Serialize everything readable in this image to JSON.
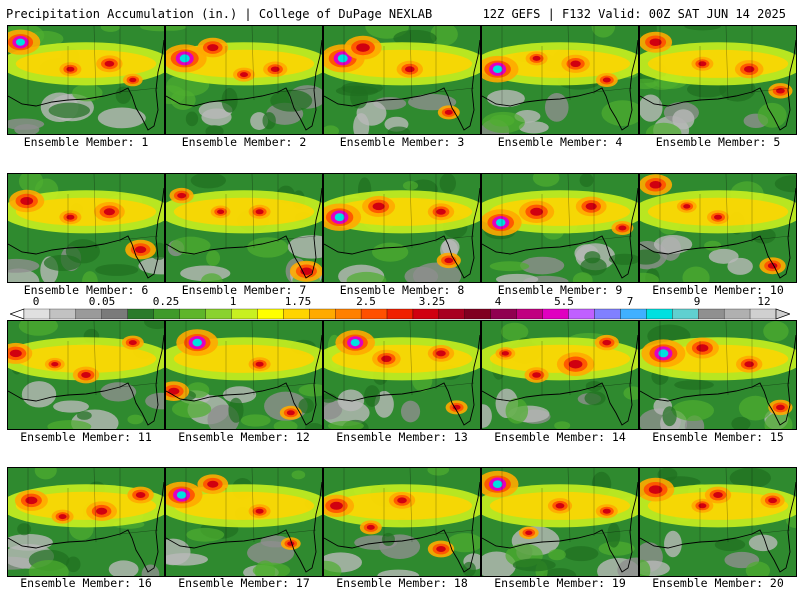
{
  "header": {
    "title": "Precipitation Accumulation (in.) | College of DuPage NEXLAB",
    "run_info": "12Z GEFS | F132 Valid: 00Z SAT JUN 14 2025"
  },
  "colorbar": {
    "labels": [
      "0",
      "0.05",
      "0.25",
      "1",
      "1.75",
      "2.5",
      "3.25",
      "4",
      "5.5",
      "7",
      "9",
      "12"
    ],
    "colors": [
      "#e0e0e0",
      "#c2c2c2",
      "#9a9a9a",
      "#7a7a7a",
      "#2a7a2a",
      "#3f9a2a",
      "#5fb52a",
      "#8ad22e",
      "#c8f020",
      "#ffff00",
      "#ffd400",
      "#ffaa00",
      "#ff8000",
      "#ff5000",
      "#f02000",
      "#d00010",
      "#a80020",
      "#800020",
      "#900050",
      "#c00080",
      "#e000c0",
      "#c060ff",
      "#8080ff",
      "#40b0ff",
      "#00e0e0",
      "#60d0d0",
      "#909090",
      "#b0b0b0",
      "#d0d0d0"
    ]
  },
  "members": [
    {
      "label": "Ensemble Member: 1",
      "blobs": [
        [
          0.08,
          0.15,
          0.9
        ],
        [
          0.65,
          0.35,
          0.6
        ],
        [
          0.4,
          0.4,
          0.5
        ],
        [
          0.8,
          0.5,
          0.45
        ]
      ]
    },
    {
      "label": "Ensemble Member: 2",
      "blobs": [
        [
          0.12,
          0.3,
          1.0
        ],
        [
          0.3,
          0.2,
          0.7
        ],
        [
          0.7,
          0.4,
          0.55
        ],
        [
          0.5,
          0.45,
          0.5
        ]
      ]
    },
    {
      "label": "Ensemble Member: 3",
      "blobs": [
        [
          0.12,
          0.3,
          1.0
        ],
        [
          0.25,
          0.2,
          0.85
        ],
        [
          0.55,
          0.4,
          0.6
        ],
        [
          0.8,
          0.8,
          0.5
        ]
      ]
    },
    {
      "label": "Ensemble Member: 4",
      "blobs": [
        [
          0.1,
          0.4,
          0.95
        ],
        [
          0.6,
          0.35,
          0.65
        ],
        [
          0.35,
          0.3,
          0.5
        ],
        [
          0.8,
          0.5,
          0.5
        ]
      ]
    },
    {
      "label": "Ensemble Member: 5",
      "blobs": [
        [
          0.1,
          0.15,
          0.75
        ],
        [
          0.7,
          0.4,
          0.65
        ],
        [
          0.9,
          0.6,
          0.55
        ],
        [
          0.4,
          0.35,
          0.5
        ]
      ]
    },
    {
      "label": "Ensemble Member: 6",
      "blobs": [
        [
          0.12,
          0.25,
          0.8
        ],
        [
          0.65,
          0.35,
          0.7
        ],
        [
          0.85,
          0.7,
          0.7
        ],
        [
          0.4,
          0.4,
          0.5
        ]
      ]
    },
    {
      "label": "Ensemble Member: 7",
      "blobs": [
        [
          0.1,
          0.2,
          0.55
        ],
        [
          0.6,
          0.35,
          0.5
        ],
        [
          0.9,
          0.9,
          0.75
        ],
        [
          0.35,
          0.35,
          0.45
        ]
      ]
    },
    {
      "label": "Ensemble Member: 8",
      "blobs": [
        [
          0.1,
          0.4,
          0.98
        ],
        [
          0.35,
          0.3,
          0.75
        ],
        [
          0.75,
          0.35,
          0.6
        ],
        [
          0.8,
          0.8,
          0.55
        ]
      ]
    },
    {
      "label": "Ensemble Member: 9",
      "blobs": [
        [
          0.12,
          0.45,
          0.95
        ],
        [
          0.35,
          0.35,
          0.8
        ],
        [
          0.7,
          0.3,
          0.7
        ],
        [
          0.9,
          0.5,
          0.5
        ]
      ]
    },
    {
      "label": "Ensemble Member: 10",
      "blobs": [
        [
          0.1,
          0.1,
          0.75
        ],
        [
          0.5,
          0.4,
          0.5
        ],
        [
          0.85,
          0.85,
          0.6
        ],
        [
          0.3,
          0.3,
          0.45
        ]
      ]
    },
    {
      "label": "Ensemble Member: 11",
      "blobs": [
        [
          0.05,
          0.3,
          0.75
        ],
        [
          0.5,
          0.5,
          0.6
        ],
        [
          0.8,
          0.2,
          0.5
        ],
        [
          0.3,
          0.4,
          0.45
        ]
      ]
    },
    {
      "label": "Ensemble Member: 12",
      "blobs": [
        [
          0.2,
          0.2,
          0.95
        ],
        [
          0.05,
          0.65,
          0.7
        ],
        [
          0.6,
          0.4,
          0.5
        ],
        [
          0.8,
          0.85,
          0.5
        ]
      ]
    },
    {
      "label": "Ensemble Member: 13",
      "blobs": [
        [
          0.2,
          0.2,
          0.9
        ],
        [
          0.4,
          0.35,
          0.65
        ],
        [
          0.75,
          0.3,
          0.6
        ],
        [
          0.85,
          0.8,
          0.5
        ]
      ]
    },
    {
      "label": "Ensemble Member: 14",
      "blobs": [
        [
          0.6,
          0.4,
          0.85
        ],
        [
          0.35,
          0.5,
          0.55
        ],
        [
          0.8,
          0.2,
          0.55
        ],
        [
          0.15,
          0.3,
          0.45
        ]
      ]
    },
    {
      "label": "Ensemble Member: 15",
      "blobs": [
        [
          0.15,
          0.3,
          1.0
        ],
        [
          0.4,
          0.25,
          0.75
        ],
        [
          0.7,
          0.4,
          0.6
        ],
        [
          0.9,
          0.8,
          0.55
        ]
      ]
    },
    {
      "label": "Ensemble Member: 16",
      "blobs": [
        [
          0.15,
          0.3,
          0.75
        ],
        [
          0.6,
          0.4,
          0.7
        ],
        [
          0.85,
          0.25,
          0.6
        ],
        [
          0.35,
          0.45,
          0.5
        ]
      ]
    },
    {
      "label": "Ensemble Member: 17",
      "blobs": [
        [
          0.1,
          0.25,
          0.95
        ],
        [
          0.3,
          0.15,
          0.7
        ],
        [
          0.6,
          0.4,
          0.5
        ],
        [
          0.8,
          0.7,
          0.45
        ]
      ]
    },
    {
      "label": "Ensemble Member: 18",
      "blobs": [
        [
          0.08,
          0.35,
          0.8
        ],
        [
          0.5,
          0.3,
          0.6
        ],
        [
          0.75,
          0.75,
          0.6
        ],
        [
          0.3,
          0.55,
          0.5
        ]
      ]
    },
    {
      "label": "Ensemble Member: 19",
      "blobs": [
        [
          0.1,
          0.15,
          0.95
        ],
        [
          0.5,
          0.35,
          0.55
        ],
        [
          0.8,
          0.4,
          0.5
        ],
        [
          0.3,
          0.6,
          0.45
        ]
      ]
    },
    {
      "label": "Ensemble Member: 20",
      "blobs": [
        [
          0.1,
          0.2,
          0.85
        ],
        [
          0.5,
          0.25,
          0.6
        ],
        [
          0.85,
          0.3,
          0.55
        ],
        [
          0.4,
          0.35,
          0.5
        ]
      ]
    }
  ]
}
